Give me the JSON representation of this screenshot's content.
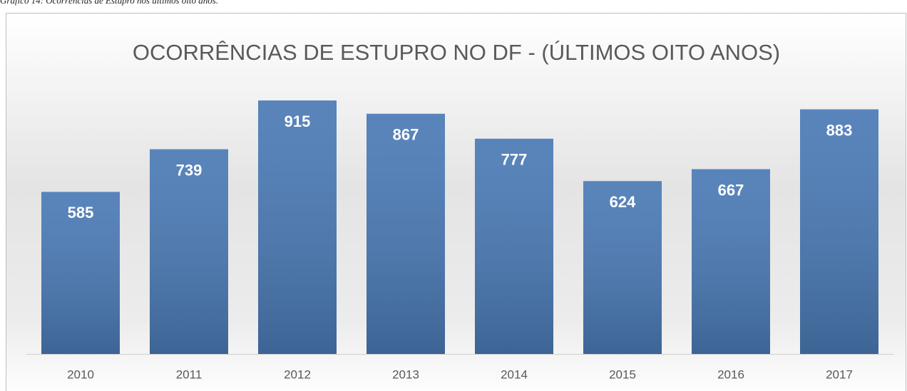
{
  "caption": "Gráfico 14: Ocorrências de Estupro nos últimos oito anos.",
  "chart_data": {
    "type": "bar",
    "title": "OCORRÊNCIAS DE ESTUPRO NO DF - (ÚLTIMOS OITO ANOS)",
    "categories": [
      "2010",
      "2011",
      "2012",
      "2013",
      "2014",
      "2015",
      "2016",
      "2017"
    ],
    "values": [
      585,
      739,
      915,
      867,
      777,
      624,
      667,
      883
    ],
    "color": "#4a7ab5",
    "ylim": [
      0,
      1000
    ],
    "data_labels": true
  }
}
